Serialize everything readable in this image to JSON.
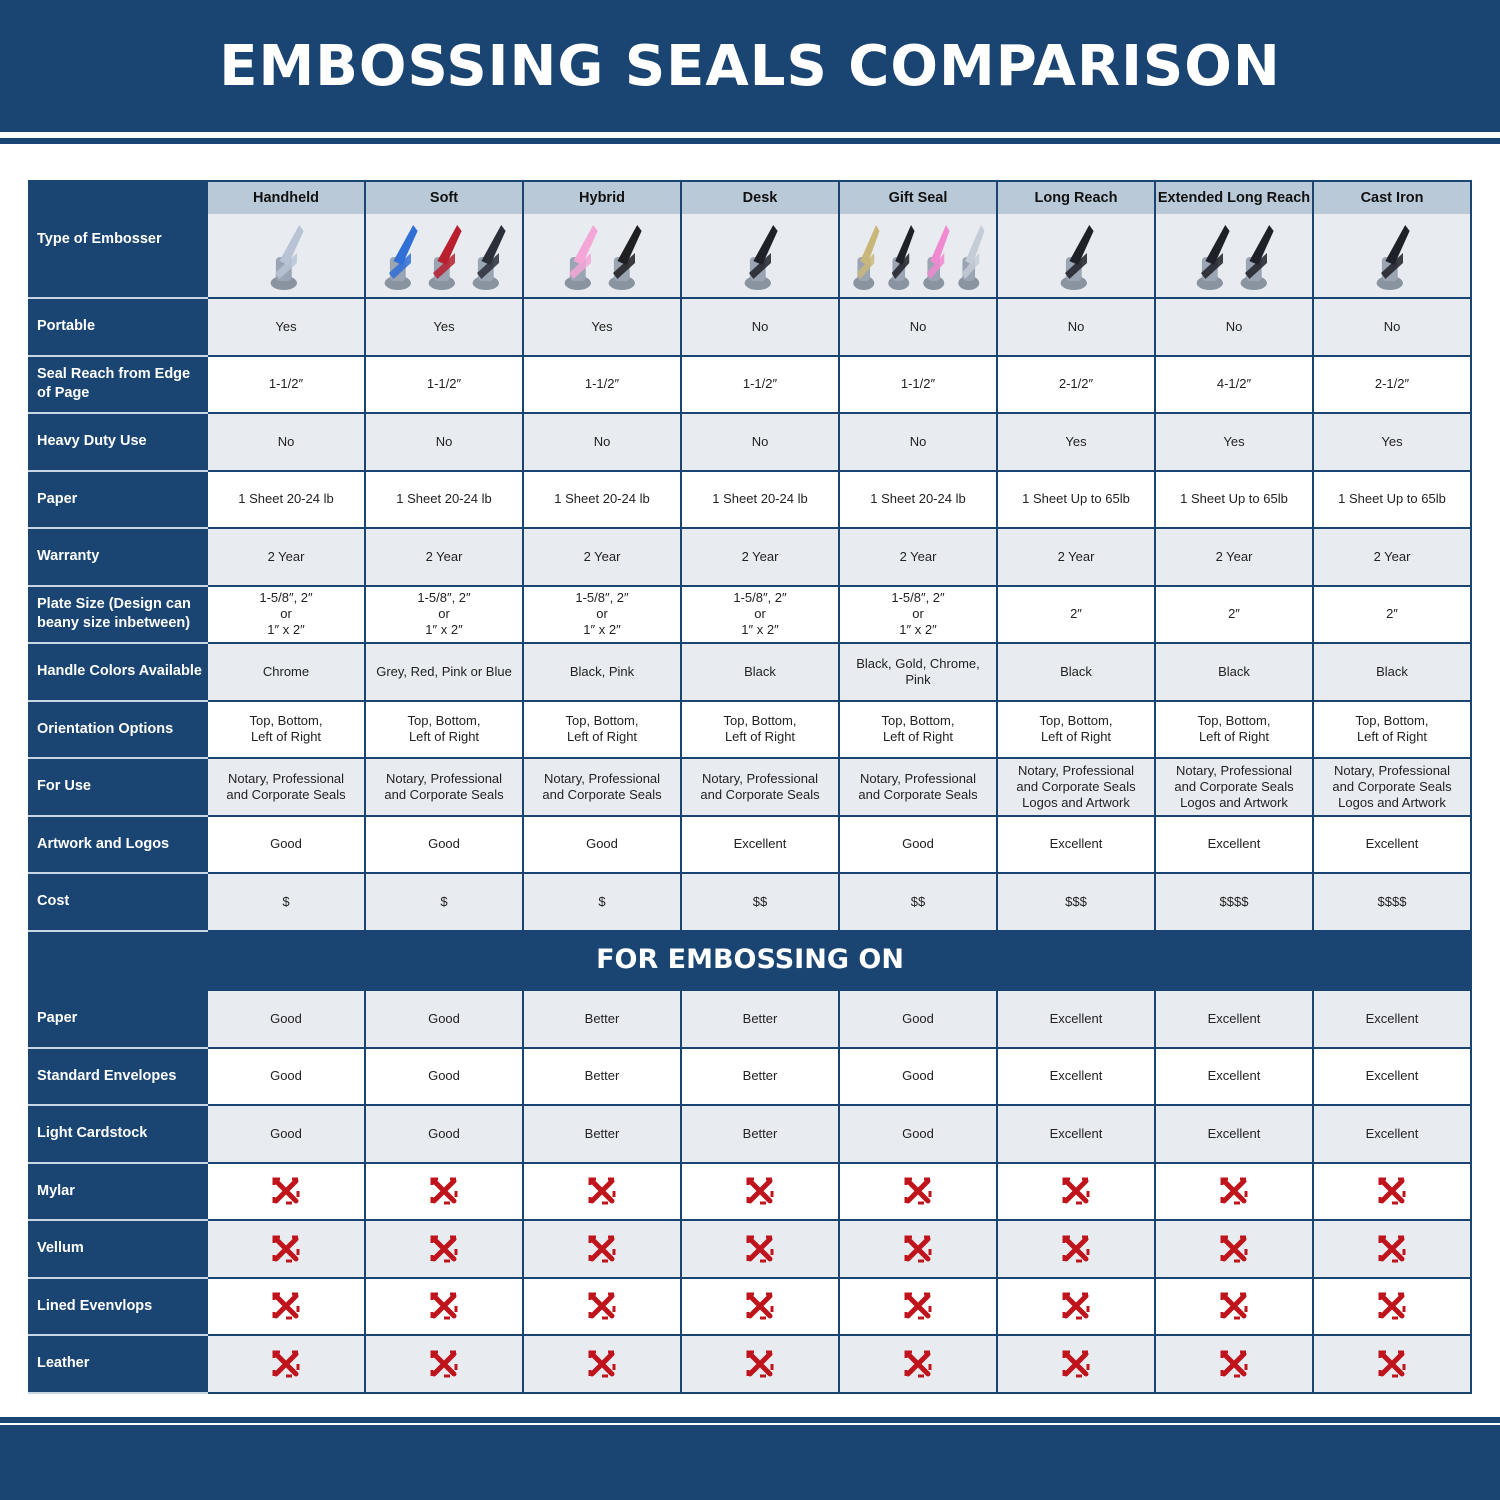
{
  "title": "EMBOSSING SEALS COMPARISON",
  "colors": {
    "brand": "#1a4573",
    "header_band": "#b9c9d8",
    "row_alt": "#e8ecf0",
    "cross": "#c0141c"
  },
  "type_label": "Type of Embosser",
  "columns": [
    {
      "name": "Handheld",
      "handle_colors": [
        "#b8c4d6"
      ]
    },
    {
      "name": "Soft",
      "handle_colors": [
        "#2f6fd6",
        "#b8202e",
        "#2a2f3a"
      ]
    },
    {
      "name": "Hybrid",
      "handle_colors": [
        "#f4a6d7",
        "#1f1f22"
      ]
    },
    {
      "name": "Desk",
      "handle_colors": [
        "#1e2128"
      ]
    },
    {
      "name": "Gift Seal",
      "handle_colors": [
        "#c9b77a",
        "#1e2128",
        "#f08ad0",
        "#c4ccd6"
      ]
    },
    {
      "name": "Long Reach",
      "handle_colors": [
        "#1e2128"
      ]
    },
    {
      "name": "Extended Long Reach",
      "handle_colors": [
        "#1e2128",
        "#1e2128"
      ]
    },
    {
      "name": "Cast Iron",
      "handle_colors": [
        "#1e2128"
      ]
    }
  ],
  "rows": [
    {
      "label": "Portable",
      "values": [
        "Yes",
        "Yes",
        "Yes",
        "No",
        "No",
        "No",
        "No",
        "No"
      ]
    },
    {
      "label": "Seal Reach from Edge of Page",
      "values": [
        "1-1/2″",
        "1-1/2″",
        "1-1/2″",
        "1-1/2″",
        "1-1/2″",
        "2-1/2″",
        "4-1/2″",
        "2-1/2″"
      ]
    },
    {
      "label": "Heavy Duty Use",
      "values": [
        "No",
        "No",
        "No",
        "No",
        "No",
        "Yes",
        "Yes",
        "Yes"
      ]
    },
    {
      "label": "Paper",
      "values": [
        "1 Sheet 20-24 lb",
        "1 Sheet 20-24 lb",
        "1 Sheet 20-24 lb",
        "1 Sheet 20-24 lb",
        "1 Sheet 20-24 lb",
        "1 Sheet Up to 65lb",
        "1 Sheet Up to 65lb",
        "1 Sheet Up to 65lb"
      ]
    },
    {
      "label": "Warranty",
      "values": [
        "2 Year",
        "2 Year",
        "2 Year",
        "2 Year",
        "2 Year",
        "2 Year",
        "2 Year",
        "2 Year"
      ]
    },
    {
      "label": "Plate Size (Design can beany size inbetween)",
      "values": [
        "1-5/8″, 2″\nor\n1″ x 2″",
        "1-5/8″, 2″\nor\n1″ x 2″",
        "1-5/8″, 2″\nor\n1″ x 2″",
        "1-5/8″, 2″\nor\n1″ x 2″",
        "1-5/8″, 2″\nor\n1″ x 2″",
        "2″",
        "2″",
        "2″"
      ]
    },
    {
      "label": "Handle Colors Available",
      "values": [
        "Chrome",
        "Grey, Red, Pink or Blue",
        "Black, Pink",
        "Black",
        "Black, Gold, Chrome, Pink",
        "Black",
        "Black",
        "Black"
      ]
    },
    {
      "label": "Orientation Options",
      "values": [
        "Top, Bottom,\nLeft of Right",
        "Top, Bottom,\nLeft of Right",
        "Top, Bottom,\nLeft of Right",
        "Top, Bottom,\nLeft of Right",
        "Top, Bottom,\nLeft of Right",
        "Top, Bottom,\nLeft of Right",
        "Top, Bottom,\nLeft of Right",
        "Top, Bottom,\nLeft of Right"
      ]
    },
    {
      "label": "For Use",
      "values": [
        "Notary, Professional\nand Corporate Seals",
        "Notary, Professional\nand Corporate Seals",
        "Notary, Professional\nand Corporate Seals",
        "Notary, Professional\nand Corporate Seals",
        "Notary, Professional\nand Corporate Seals",
        "Notary, Professional\nand Corporate Seals\nLogos and Artwork",
        "Notary, Professional\nand Corporate Seals\nLogos and Artwork",
        "Notary, Professional\nand Corporate Seals\nLogos and Artwork"
      ]
    },
    {
      "label": "Artwork and Logos",
      "values": [
        "Good",
        "Good",
        "Good",
        "Excellent",
        "Good",
        "Excellent",
        "Excellent",
        "Excellent"
      ]
    },
    {
      "label": "Cost",
      "values": [
        "$",
        "$",
        "$",
        "$$",
        "$$",
        "$$$",
        "$$$$",
        "$$$$"
      ]
    }
  ],
  "section_title": "FOR EMBOSSING ON",
  "embossing_rows": [
    {
      "label": "Paper",
      "values": [
        "Good",
        "Good",
        "Better",
        "Better",
        "Good",
        "Excellent",
        "Excellent",
        "Excellent"
      ]
    },
    {
      "label": "Standard Envelopes",
      "values": [
        "Good",
        "Good",
        "Better",
        "Better",
        "Good",
        "Excellent",
        "Excellent",
        "Excellent"
      ]
    },
    {
      "label": "Light Cardstock",
      "values": [
        "Good",
        "Good",
        "Better",
        "Better",
        "Good",
        "Excellent",
        "Excellent",
        "Excellent"
      ]
    },
    {
      "label": "Mylar",
      "values": [
        "x",
        "x",
        "x",
        "x",
        "x",
        "x",
        "x",
        "x"
      ]
    },
    {
      "label": "Vellum",
      "values": [
        "x",
        "x",
        "x",
        "x",
        "x",
        "x",
        "x",
        "x"
      ]
    },
    {
      "label": "Lined Evenvlops",
      "values": [
        "x",
        "x",
        "x",
        "x",
        "x",
        "x",
        "x",
        "x"
      ]
    },
    {
      "label": "Leather",
      "values": [
        "x",
        "x",
        "x",
        "x",
        "x",
        "x",
        "x",
        "x"
      ]
    }
  ]
}
